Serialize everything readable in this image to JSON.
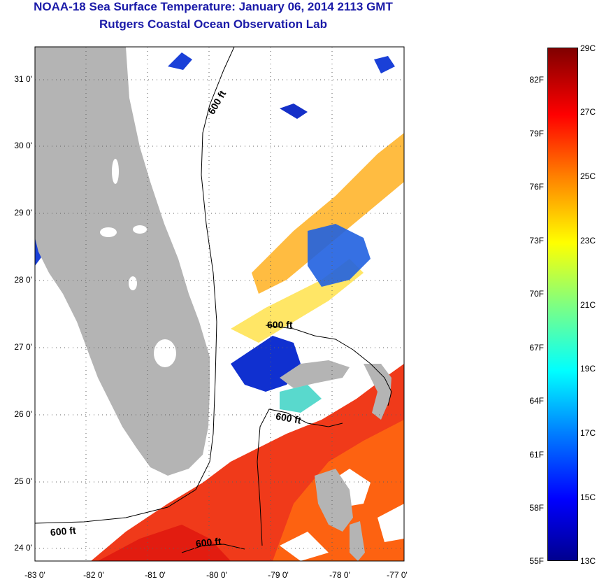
{
  "header": {
    "title": "NOAA-18 Sea Surface Temperature:  January 06, 2014 2113 GMT",
    "subtitle": "Rutgers Coastal Ocean Observation Lab"
  },
  "map": {
    "lat_labels": [
      "31 0'",
      "30 0'",
      "29 0'",
      "28 0'",
      "27 0'",
      "26 0'",
      "25 0'",
      "24 0'"
    ],
    "lon_labels": [
      "-83 0'",
      "-82 0'",
      "-81 0'",
      "-80 0'",
      "-79 0'",
      "-78 0'",
      "-77 0'"
    ],
    "contour_labels": [
      "600 ft",
      "600 ft",
      "600 ft",
      "600 ft",
      "600 ft"
    ],
    "colors": {
      "land": "#b4b4b4",
      "cloud": "#ffffff",
      "cold": "#00008f",
      "warm": "#ff3000"
    }
  },
  "colorbar": {
    "fahrenheit_labels": [
      "82F",
      "79F",
      "76F",
      "73F",
      "70F",
      "67F",
      "64F",
      "61F",
      "58F",
      "55F"
    ],
    "celsius_labels": [
      "29C",
      "27C",
      "25C",
      "23C",
      "21C",
      "19C",
      "17C",
      "15C",
      "13C"
    ]
  }
}
